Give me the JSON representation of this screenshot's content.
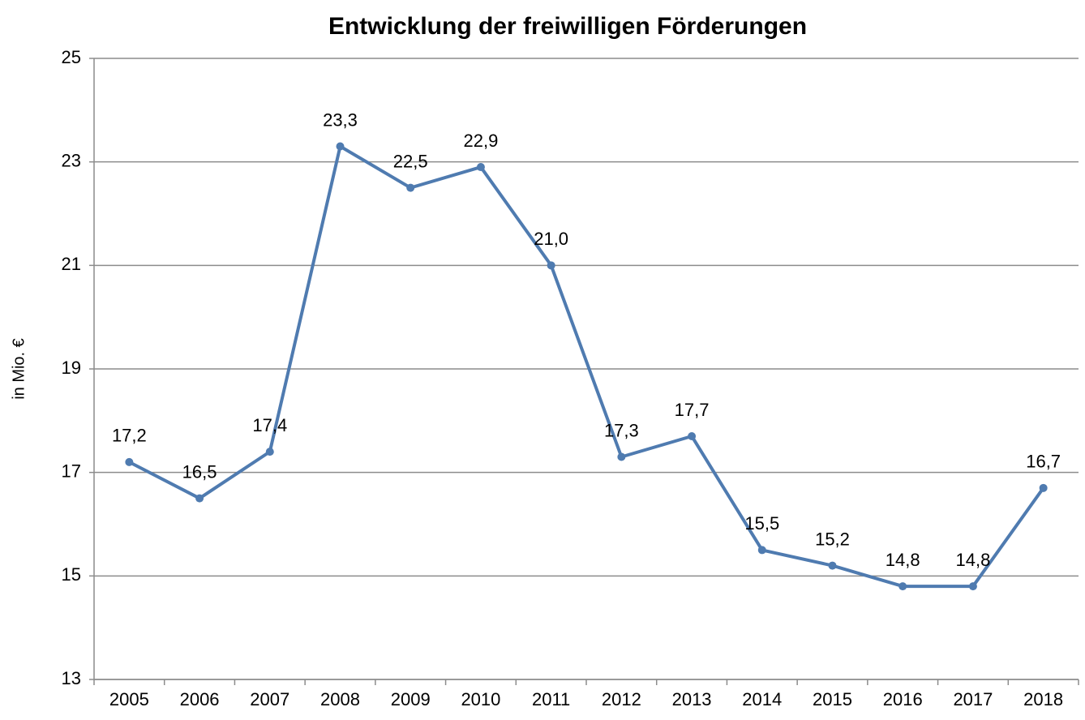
{
  "chart_data": {
    "type": "line",
    "title": "Entwicklung der freiwilligen Förderungen",
    "y_label": "in Mio. €",
    "categories": [
      "2005",
      "2006",
      "2007",
      "2008",
      "2009",
      "2010",
      "2011",
      "2012",
      "2013",
      "2014",
      "2015",
      "2016",
      "2017",
      "2018"
    ],
    "series": [
      {
        "color": "#4f7bb0",
        "values": [
          17.2,
          16.5,
          17.4,
          23.3,
          22.5,
          22.9,
          21.0,
          17.3,
          17.7,
          15.5,
          15.2,
          14.8,
          14.8,
          16.7
        ],
        "value_labels": [
          "17,2",
          "16,5",
          "17,4",
          "23,3",
          "22,5",
          "22,9",
          "21,0",
          "17,3",
          "17,7",
          "15,5",
          "15,2",
          "14,8",
          "14,8",
          "16,7"
        ]
      }
    ],
    "ylim": [
      13,
      25
    ],
    "yticks": [
      13,
      15,
      17,
      19,
      21,
      23,
      25
    ],
    "grid": true
  }
}
